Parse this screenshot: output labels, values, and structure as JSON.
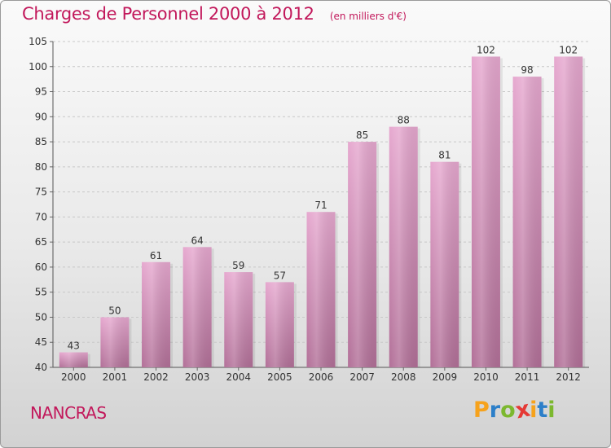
{
  "header": {
    "title": "Charges de Personnel 2000 à 2012",
    "subtitle": "(en milliers d'€)"
  },
  "footer": {
    "place": "NANCRAS",
    "brand": "Proxiti"
  },
  "colors": {
    "title": "#c2185b",
    "bar_top": "#e6a8cf",
    "bar_bottom": "#b27098",
    "logo": [
      "#f6a21c",
      "#2c7fc9",
      "#7cb82f",
      "#e53935",
      "#f6a21c",
      "#2c7fc9",
      "#7cb82f"
    ]
  },
  "chart_data": {
    "type": "bar",
    "categories": [
      "2000",
      "2001",
      "2002",
      "2003",
      "2004",
      "2005",
      "2006",
      "2007",
      "2008",
      "2009",
      "2010",
      "2011",
      "2012"
    ],
    "values": [
      43,
      50,
      61,
      64,
      59,
      57,
      71,
      85,
      88,
      81,
      102,
      98,
      102
    ],
    "ylim": [
      40,
      105
    ],
    "yticks": [
      40,
      45,
      50,
      55,
      60,
      65,
      70,
      75,
      80,
      85,
      90,
      95,
      100,
      105
    ],
    "grid": true,
    "data_labels": true
  }
}
